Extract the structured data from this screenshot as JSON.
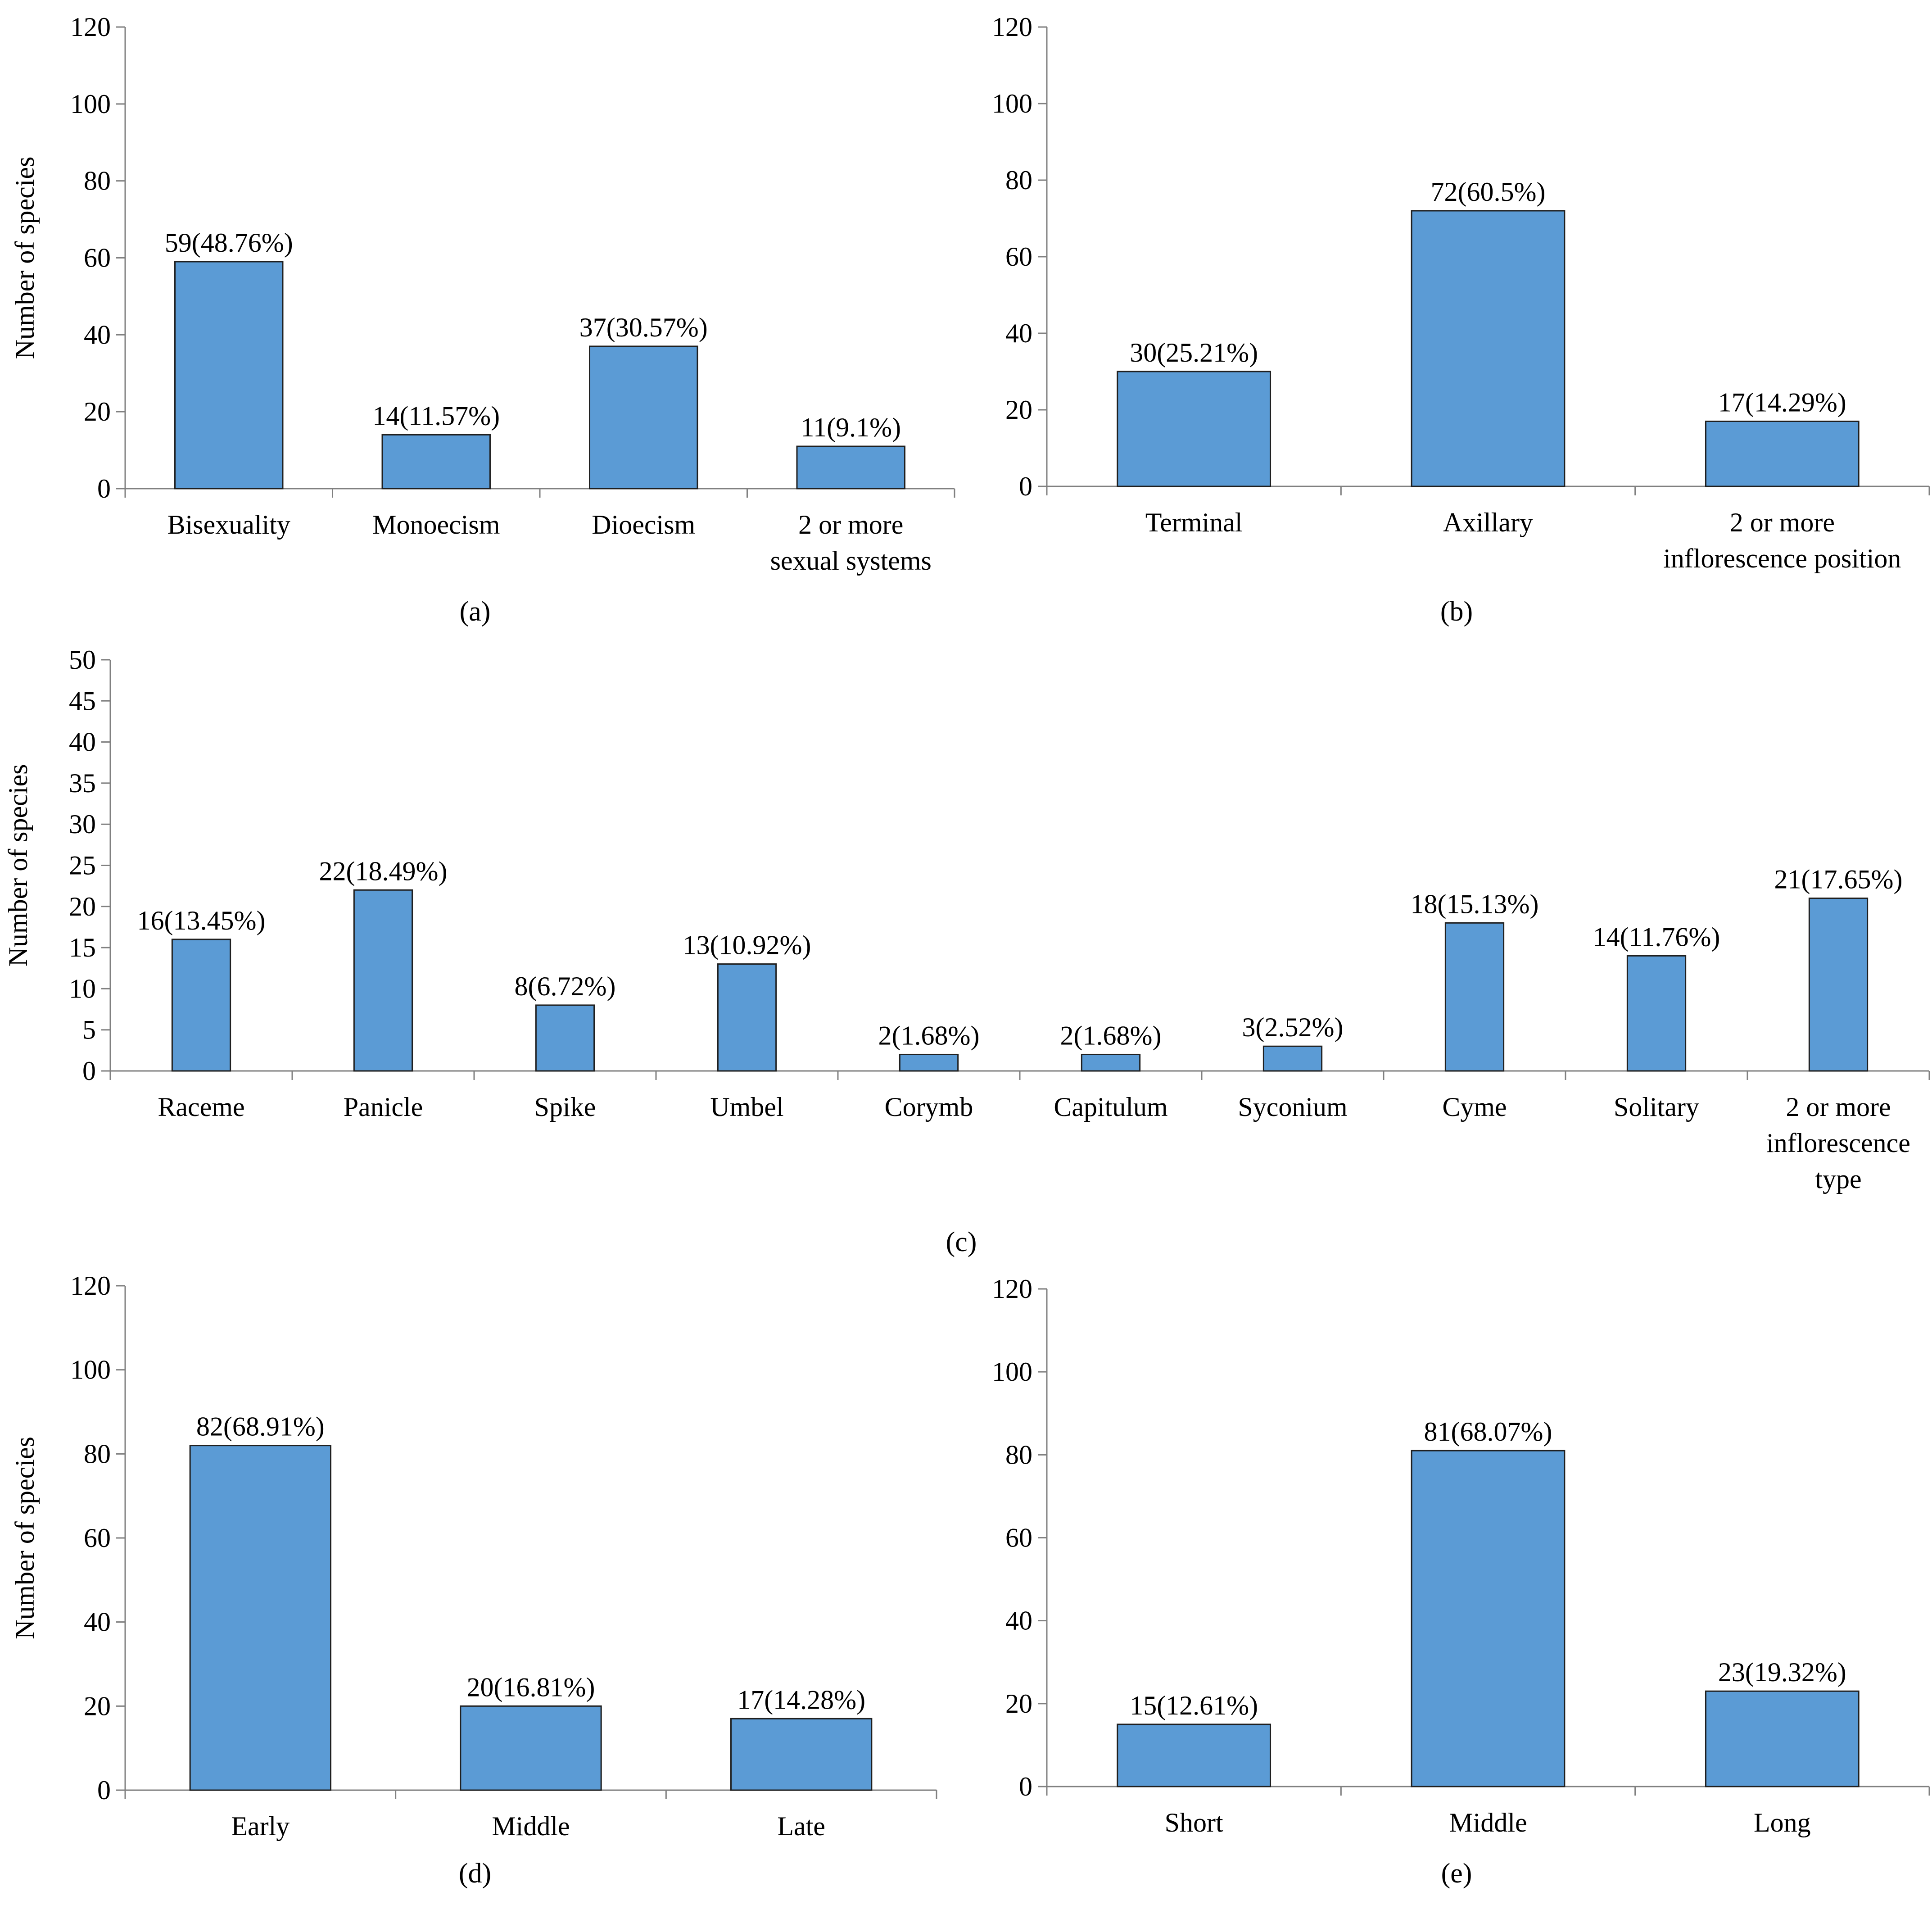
{
  "panel_labels": {
    "a": "(a)",
    "b": "(b)",
    "c": "(c)",
    "d": "(d)",
    "e": "(e)"
  },
  "chart_data": [
    {
      "id": "a",
      "type": "bar",
      "ylabel": "Number of species",
      "ylim": [
        0,
        120
      ],
      "yticks": [
        0,
        20,
        40,
        60,
        80,
        100,
        120
      ],
      "categories": [
        "Bisexuality",
        "Monoecism",
        "Dioecism",
        "2 or more\nsexual systems"
      ],
      "values": [
        59,
        14,
        37,
        11
      ],
      "labels": [
        "59(48.76%)",
        "14(11.57%)",
        "37(30.57%)",
        "11(9.1%)"
      ],
      "bar_color": "#5B9BD5"
    },
    {
      "id": "b",
      "type": "bar",
      "ylabel": "",
      "ylim": [
        0,
        120
      ],
      "yticks": [
        0,
        20,
        40,
        60,
        80,
        100,
        120
      ],
      "categories": [
        "Terminal",
        "Axillary",
        "2 or more\ninflorescence position"
      ],
      "values": [
        30,
        72,
        17
      ],
      "labels": [
        "30(25.21%)",
        "72(60.5%)",
        "17(14.29%)"
      ],
      "bar_color": "#5B9BD5"
    },
    {
      "id": "c",
      "type": "bar",
      "ylabel": "Number of species",
      "ylim": [
        0,
        50
      ],
      "yticks": [
        0,
        5,
        10,
        15,
        20,
        25,
        30,
        35,
        40,
        45,
        50
      ],
      "categories": [
        "Raceme",
        "Panicle",
        "Spike",
        "Umbel",
        "Corymb",
        "Capitulum",
        "Syconium",
        "Cyme",
        "Solitary",
        "2 or more\ninflorescence\ntype"
      ],
      "values": [
        16,
        22,
        8,
        13,
        2,
        2,
        3,
        18,
        14,
        21
      ],
      "labels": [
        "16(13.45%)",
        "22(18.49%)",
        "8(6.72%)",
        "13(10.92%)",
        "2(1.68%)",
        "2(1.68%)",
        "3(2.52%)",
        "18(15.13%)",
        "14(11.76%)",
        "21(17.65%)"
      ],
      "bar_color": "#5B9BD5"
    },
    {
      "id": "d",
      "type": "bar",
      "ylabel": "Number of species",
      "ylim": [
        0,
        120
      ],
      "yticks": [
        0,
        20,
        40,
        60,
        80,
        100,
        120
      ],
      "categories": [
        "Early",
        "Middle",
        "Late"
      ],
      "values": [
        82,
        20,
        17
      ],
      "labels": [
        "82(68.91%)",
        "20(16.81%)",
        "17(14.28%)"
      ],
      "bar_color": "#5B9BD5"
    },
    {
      "id": "e",
      "type": "bar",
      "ylabel": "",
      "ylim": [
        0,
        120
      ],
      "yticks": [
        0,
        20,
        40,
        60,
        80,
        100,
        120
      ],
      "categories": [
        "Short",
        "Middle",
        "Long"
      ],
      "values": [
        15,
        81,
        23
      ],
      "labels": [
        "15(12.61%)",
        "81(68.07%)",
        "23(19.32%)"
      ],
      "bar_color": "#5B9BD5"
    }
  ]
}
